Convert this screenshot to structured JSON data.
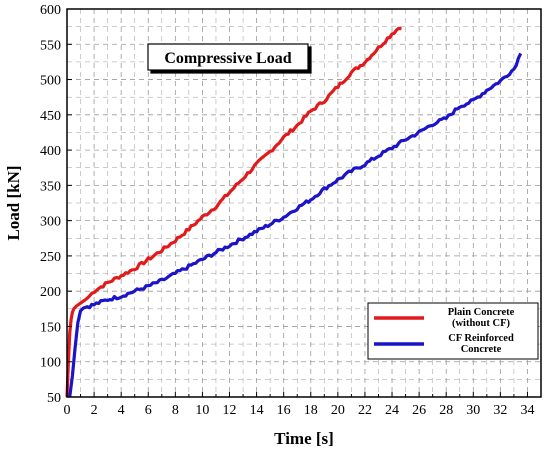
{
  "chart_data": {
    "type": "line",
    "title": "Compressive Load",
    "xlabel": "Time [s]",
    "ylabel": "Load [kN]",
    "xlim": [
      0,
      35
    ],
    "ylim": [
      50,
      600
    ],
    "xticks": [
      "0",
      "2",
      "4",
      "6",
      "8",
      "10",
      "12",
      "14",
      "16",
      "18",
      "20",
      "22",
      "24",
      "26",
      "28",
      "30",
      "32",
      "34"
    ],
    "yticks": [
      "50",
      "100",
      "150",
      "200",
      "250",
      "300",
      "350",
      "400",
      "450",
      "500",
      "550",
      "600"
    ],
    "grid": true,
    "legend_position": "bottom-right",
    "series": [
      {
        "name": "Plain Concrete (without CF)",
        "legend_lines": [
          "Plain Concrete",
          "(without CF)"
        ],
        "color": "#e31a1c",
        "x": [
          0.0,
          0.1,
          0.2,
          0.3,
          0.4,
          0.5,
          0.7,
          1.0,
          1.5,
          2,
          3,
          4,
          5,
          6,
          7,
          8,
          9,
          10,
          11,
          12,
          13,
          14,
          15,
          16,
          17,
          18,
          19,
          20,
          21,
          22,
          23,
          24,
          24.5,
          24.7
        ],
        "y": [
          50,
          100,
          140,
          160,
          170,
          175,
          179,
          183,
          190,
          200,
          212,
          222,
          232,
          245,
          258,
          272,
          288,
          305,
          320,
          340,
          360,
          380,
          398,
          418,
          435,
          455,
          470,
          490,
          510,
          525,
          545,
          565,
          573,
          572
        ]
      },
      {
        "name": "CF Reinforced Concrete",
        "legend_lines": [
          "CF Reinforced",
          "Concrete"
        ],
        "color": "#1c14c8",
        "x": [
          0.2,
          0.4,
          0.6,
          0.8,
          1.0,
          1.2,
          1.5,
          2,
          3,
          4,
          5,
          6,
          7,
          8,
          9,
          10,
          11,
          12,
          13,
          14,
          15,
          16,
          17,
          18,
          19,
          20,
          21,
          22,
          23,
          24,
          25,
          26,
          27,
          28,
          29,
          30,
          31,
          32,
          33,
          33.5
        ],
        "y": [
          50,
          80,
          120,
          155,
          172,
          176,
          178,
          181,
          188,
          193,
          200,
          207,
          215,
          225,
          235,
          245,
          255,
          265,
          275,
          285,
          295,
          305,
          318,
          330,
          345,
          358,
          370,
          380,
          392,
          403,
          415,
          425,
          437,
          445,
          462,
          470,
          485,
          498,
          515,
          537
        ]
      }
    ]
  }
}
